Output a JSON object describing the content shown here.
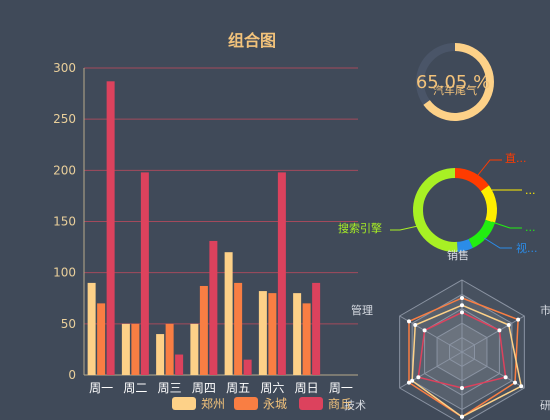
{
  "title": "组合图",
  "colors": {
    "background": "#404a59",
    "grid": "#a34a5c",
    "axis": "#b8aa8a",
    "series": [
      "#fdd188",
      "#f97e43",
      "#dc425d"
    ],
    "gauge": "#fdd188",
    "gauge_track": "#4a5568",
    "pie": [
      "#ff3b00",
      "#ffee00",
      "#22ee11",
      "#2b8ce8",
      "#a8f024"
    ],
    "radar_lines": [
      "#f97e43",
      "#fdd188",
      "#dc425d"
    ]
  },
  "gauge": {
    "value_text": "65.05 %",
    "name": "汽车尾气",
    "value": 65.05
  },
  "pie": {
    "labels": [
      "直...",
      "...",
      "...",
      "视...",
      "搜索引擎"
    ],
    "values": [
      15,
      15,
      13,
      6,
      51
    ]
  },
  "radar": {
    "indicators": [
      "销售",
      "市",
      "研",
      "技术",
      "管理"
    ]
  },
  "legend": [
    "郑州",
    "永城",
    "商丘"
  ],
  "chart_data": {
    "type": "bar",
    "title": "组合图",
    "categories": [
      "周一",
      "周二",
      "周三",
      "周四",
      "周五",
      "周六",
      "周日",
      "周一"
    ],
    "ylim": [
      0,
      300
    ],
    "yticks": [
      0,
      50,
      100,
      150,
      200,
      250,
      300
    ],
    "grid": true,
    "legend_position": "bottom",
    "series": [
      {
        "name": "郑州",
        "values": [
          90,
          50,
          40,
          50,
          120,
          82,
          80,
          null
        ]
      },
      {
        "name": "永城",
        "values": [
          70,
          50,
          50,
          87,
          90,
          80,
          70,
          null
        ]
      },
      {
        "name": "商丘",
        "values": [
          287,
          198,
          20,
          131,
          15,
          198,
          90,
          null
        ]
      }
    ]
  }
}
